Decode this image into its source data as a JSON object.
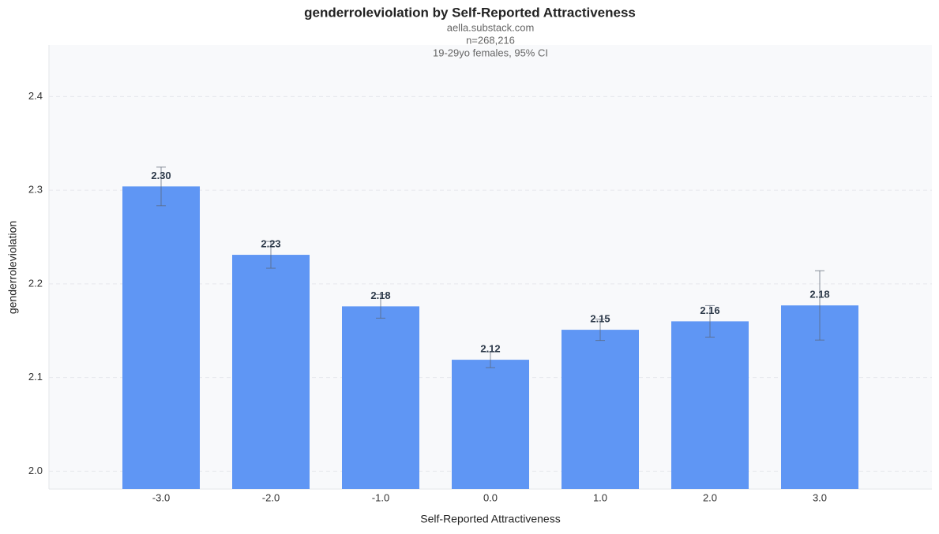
{
  "chart_data": {
    "type": "bar",
    "title": "genderroleviolation by Self-Reported Attractiveness",
    "subtitle": [
      "aella.substack.com",
      "n=268,216",
      "19-29yo females, 95% CI"
    ],
    "x_label": "Self-Reported Attractiveness",
    "y_label": "genderroleviolation",
    "categories": [
      "-3.0",
      "-2.0",
      "-1.0",
      "0.0",
      "1.0",
      "2.0",
      "3.0"
    ],
    "values": [
      2.304,
      2.231,
      2.176,
      2.119,
      2.151,
      2.16,
      2.177
    ],
    "value_labels": [
      "2.30",
      "2.23",
      "2.18",
      "2.12",
      "2.15",
      "2.16",
      "2.18"
    ],
    "errors": [
      0.0206,
      0.0143,
      0.0126,
      0.0084,
      0.0114,
      0.0168,
      0.037
    ],
    "color": "#5f96f4",
    "ylim": [
      1.981,
      2.455
    ],
    "yticks": [
      {
        "value": 2,
        "label": "2.0"
      },
      2.1,
      2.2,
      2.3,
      2.4
    ],
    "grid": true
  }
}
